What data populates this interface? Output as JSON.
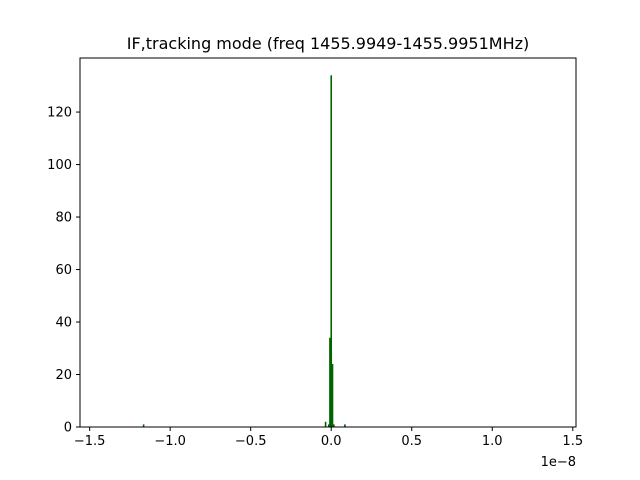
{
  "chart_data": {
    "type": "bar",
    "title": "IF,tracking mode (freq 1455.9949-1455.9951MHz)",
    "xlabel": "",
    "ylabel": "",
    "x_offset_label": "1e−8",
    "x_scale": 1e-08,
    "xlim": [
      -1.56,
      1.52
    ],
    "ylim": [
      0,
      140.6
    ],
    "grid": false,
    "bar_color": "#006400",
    "x_ticks": [
      -1.5,
      -1.0,
      -0.5,
      0.0,
      0.5,
      1.0,
      1.5
    ],
    "x_tick_labels": [
      "−1.5",
      "−1.0",
      "−0.5",
      "0.0",
      "0.5",
      "1.0",
      "1.5"
    ],
    "y_ticks": [
      0,
      20,
      40,
      60,
      80,
      100,
      120
    ],
    "y_tick_labels": [
      "0",
      "20",
      "40",
      "60",
      "80",
      "100",
      "120"
    ],
    "bin_width": 0.01,
    "bars": [
      {
        "x": -1.165,
        "value": 1
      },
      {
        "x": -0.035,
        "value": 2
      },
      {
        "x": -0.015,
        "value": 1
      },
      {
        "x": -0.008,
        "value": 34
      },
      {
        "x": 0.0,
        "value": 134
      },
      {
        "x": 0.008,
        "value": 24
      },
      {
        "x": 0.016,
        "value": 1
      },
      {
        "x": 0.085,
        "value": 1
      }
    ]
  }
}
